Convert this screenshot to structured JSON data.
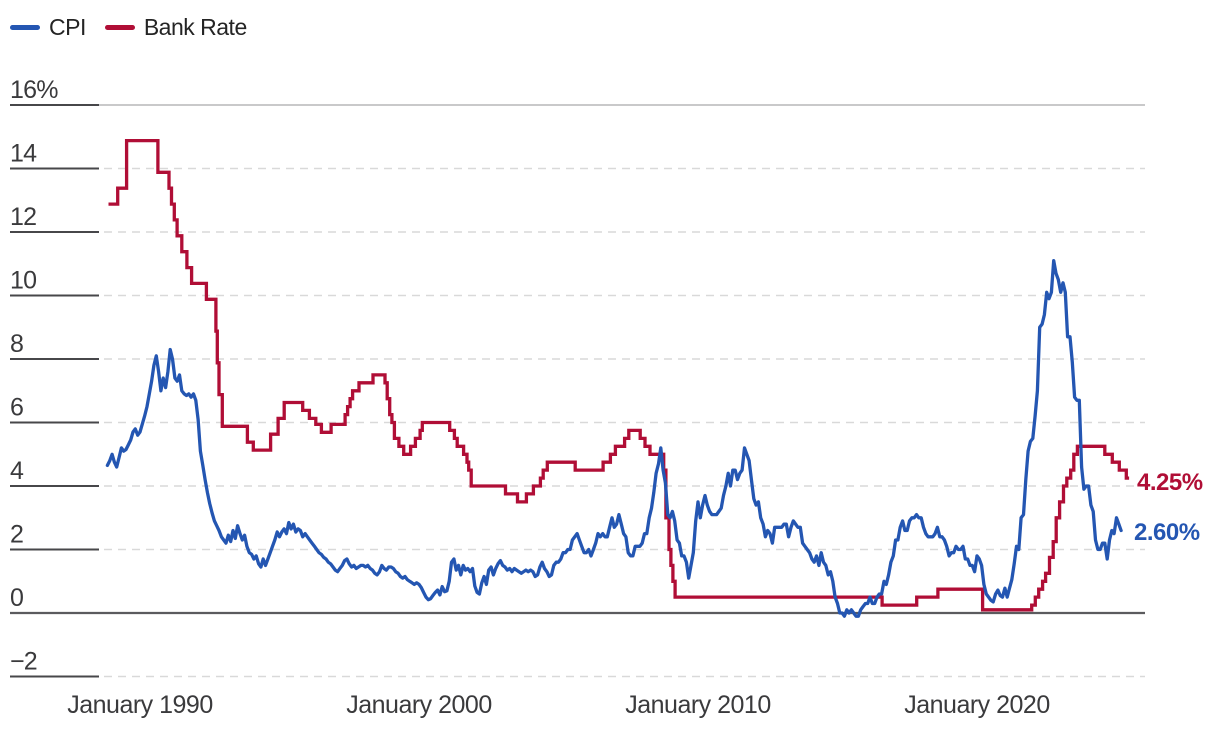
{
  "legend": {
    "items": [
      {
        "label": "CPI",
        "color": "#2456B2"
      },
      {
        "label": "Bank Rate",
        "color": "#B00E36"
      }
    ]
  },
  "chart_data": {
    "type": "line",
    "title": "",
    "grid": "horizontal, dashed light gray; solid dark zero axis; dark left tick stubs",
    "legend_position": "top-left",
    "x_axis": {
      "tick_labels": [
        "January 1990",
        "January 2000",
        "January 2010",
        "January 2020"
      ],
      "tick_years": [
        1990,
        2000,
        2010,
        2020
      ],
      "range_years": [
        1988.6,
        2026.4
      ]
    },
    "y_axis": {
      "unit": "%",
      "tick_labels": [
        "16%",
        "14",
        "12",
        "10",
        "8",
        "6",
        "4",
        "2",
        "0",
        "−2"
      ],
      "tick_values": [
        16,
        14,
        12,
        10,
        8,
        6,
        4,
        2,
        0,
        -2
      ],
      "range": [
        -2.8,
        16
      ]
    },
    "series": [
      {
        "name": "CPI",
        "type": "line",
        "color": "#2456B2",
        "end_label": "2.60%",
        "end_value": 2.6,
        "start_year": 1988.8333,
        "interval_years": 0.08333,
        "values": [
          4.65,
          4.8,
          5.0,
          4.75,
          4.6,
          4.9,
          5.2,
          5.1,
          5.15,
          5.3,
          5.45,
          5.7,
          5.8,
          5.6,
          5.7,
          5.95,
          6.2,
          6.5,
          6.9,
          7.3,
          7.8,
          8.1,
          7.6,
          7.0,
          7.4,
          7.1,
          7.6,
          8.3,
          8.0,
          7.4,
          7.3,
          7.5,
          7.0,
          6.9,
          6.85,
          6.9,
          6.8,
          6.9,
          6.7,
          6.1,
          5.1,
          4.65,
          4.2,
          3.8,
          3.45,
          3.15,
          2.9,
          2.75,
          2.6,
          2.4,
          2.3,
          2.2,
          2.45,
          2.25,
          2.6,
          2.35,
          2.75,
          2.5,
          2.3,
          2.45,
          2.1,
          1.9,
          1.85,
          1.7,
          1.8,
          1.55,
          1.45,
          1.7,
          1.5,
          1.7,
          1.9,
          2.1,
          2.3,
          2.55,
          2.4,
          2.55,
          2.65,
          2.5,
          2.85,
          2.65,
          2.8,
          2.55,
          2.65,
          2.6,
          2.4,
          2.5,
          2.4,
          2.3,
          2.2,
          2.1,
          2.0,
          1.9,
          1.85,
          1.75,
          1.7,
          1.6,
          1.55,
          1.45,
          1.35,
          1.3,
          1.4,
          1.5,
          1.65,
          1.7,
          1.55,
          1.45,
          1.5,
          1.4,
          1.45,
          1.5,
          1.5,
          1.45,
          1.5,
          1.4,
          1.35,
          1.25,
          1.2,
          1.3,
          1.5,
          1.4,
          1.35,
          1.45,
          1.45,
          1.4,
          1.3,
          1.25,
          1.15,
          1.1,
          1.15,
          1.05,
          1.0,
          0.95,
          0.9,
          0.95,
          0.9,
          0.8,
          0.65,
          0.5,
          0.42,
          0.45,
          0.55,
          0.65,
          0.72,
          0.57,
          0.83,
          0.67,
          0.7,
          1.0,
          1.6,
          1.7,
          1.35,
          1.5,
          1.2,
          1.5,
          1.35,
          1.4,
          1.3,
          1.4,
          0.85,
          0.65,
          0.6,
          0.95,
          1.15,
          0.9,
          1.35,
          1.45,
          1.2,
          1.4,
          1.55,
          1.65,
          1.5,
          1.45,
          1.35,
          1.4,
          1.3,
          1.4,
          1.35,
          1.3,
          1.25,
          1.3,
          1.35,
          1.3,
          1.35,
          1.3,
          1.15,
          1.2,
          1.45,
          1.6,
          1.4,
          1.3,
          1.15,
          1.2,
          1.5,
          1.6,
          1.6,
          1.7,
          1.9,
          1.9,
          2.0,
          2.0,
          2.3,
          2.4,
          2.5,
          2.3,
          2.1,
          1.9,
          1.9,
          2.0,
          1.8,
          2.0,
          2.2,
          2.5,
          2.4,
          2.5,
          2.4,
          2.4,
          2.7,
          3.0,
          2.7,
          2.8,
          3.1,
          2.8,
          2.5,
          2.4,
          1.9,
          1.8,
          1.8,
          2.1,
          2.1,
          2.1,
          2.2,
          2.5,
          2.5,
          3.0,
          3.3,
          3.8,
          4.4,
          4.7,
          5.2,
          4.5,
          4.1,
          3.1,
          3.0,
          3.2,
          2.9,
          2.3,
          2.2,
          1.8,
          1.8,
          1.6,
          1.1,
          1.5,
          1.9,
          2.9,
          3.5,
          3.0,
          3.4,
          3.7,
          3.4,
          3.2,
          3.1,
          3.1,
          3.1,
          3.2,
          3.3,
          3.7,
          4.0,
          4.4,
          4.0,
          4.5,
          4.5,
          4.2,
          4.4,
          4.5,
          5.2,
          5.0,
          4.8,
          4.2,
          3.6,
          3.4,
          3.5,
          3.0,
          2.8,
          2.4,
          2.6,
          2.5,
          2.2,
          2.7,
          2.7,
          2.7,
          2.7,
          2.8,
          2.8,
          2.4,
          2.7,
          2.9,
          2.8,
          2.7,
          2.7,
          2.2,
          2.1,
          2.0,
          1.9,
          1.7,
          1.6,
          1.8,
          1.5,
          1.9,
          1.6,
          1.5,
          1.2,
          1.3,
          1.0,
          0.5,
          0.3,
          0.0,
          0.0,
          -0.1,
          0.1,
          0.0,
          0.1,
          0.0,
          -0.1,
          -0.1,
          0.1,
          0.2,
          0.3,
          0.3,
          0.5,
          0.3,
          0.3,
          0.5,
          0.6,
          0.6,
          1.0,
          0.9,
          1.2,
          1.6,
          1.8,
          2.3,
          2.3,
          2.7,
          2.9,
          2.6,
          2.6,
          2.9,
          3.0,
          3.0,
          3.1,
          3.0,
          3.0,
          2.7,
          2.5,
          2.4,
          2.4,
          2.4,
          2.5,
          2.7,
          2.4,
          2.4,
          2.3,
          2.1,
          1.8,
          1.9,
          1.9,
          2.1,
          2.0,
          2.0,
          2.1,
          1.7,
          1.7,
          1.5,
          1.5,
          1.3,
          1.8,
          1.7,
          1.5,
          0.9,
          0.6,
          0.5,
          0.4,
          0.35,
          0.6,
          0.72,
          0.55,
          0.5,
          0.78,
          0.5,
          0.78,
          1.05,
          1.55,
          2.1,
          2.0,
          3.0,
          3.1,
          4.2,
          5.1,
          5.4,
          5.5,
          6.2,
          7.0,
          9.0,
          9.1,
          9.4,
          10.1,
          9.9,
          10.1,
          11.1,
          10.7,
          10.5,
          10.1,
          10.4,
          10.1,
          8.7,
          8.7,
          7.9,
          6.8,
          6.7,
          6.7,
          4.6,
          3.9,
          4.0,
          4.0,
          3.4,
          3.2,
          2.3,
          2.0,
          2.0,
          2.2,
          2.2,
          1.7,
          2.3,
          2.6,
          2.5,
          3.0,
          2.8,
          2.6
        ]
      },
      {
        "name": "Bank Rate",
        "type": "step",
        "color": "#B00E36",
        "end_label": "4.25%",
        "end_value": 4.25,
        "end_year": 2025.45,
        "points": [
          [
            1988.87,
            12.88
          ],
          [
            1989.2,
            13.38
          ],
          [
            1989.52,
            14.88
          ],
          [
            1990.64,
            13.88
          ],
          [
            1991.04,
            13.38
          ],
          [
            1991.13,
            12.88
          ],
          [
            1991.23,
            12.38
          ],
          [
            1991.33,
            11.88
          ],
          [
            1991.5,
            11.38
          ],
          [
            1991.68,
            10.88
          ],
          [
            1991.85,
            10.38
          ],
          [
            1992.38,
            9.88
          ],
          [
            1992.72,
            8.88
          ],
          [
            1992.77,
            7.88
          ],
          [
            1992.83,
            6.88
          ],
          [
            1992.95,
            5.88
          ],
          [
            1993.85,
            5.38
          ],
          [
            1994.06,
            5.13
          ],
          [
            1994.68,
            5.63
          ],
          [
            1994.95,
            6.13
          ],
          [
            1995.17,
            6.63
          ],
          [
            1995.83,
            6.38
          ],
          [
            1996.07,
            6.13
          ],
          [
            1996.3,
            5.94
          ],
          [
            1996.5,
            5.69
          ],
          [
            1996.85,
            5.94
          ],
          [
            1997.35,
            6.25
          ],
          [
            1997.44,
            6.5
          ],
          [
            1997.53,
            6.75
          ],
          [
            1997.62,
            7.0
          ],
          [
            1997.85,
            7.25
          ],
          [
            1998.35,
            7.5
          ],
          [
            1998.78,
            7.25
          ],
          [
            1998.86,
            6.75
          ],
          [
            1998.95,
            6.25
          ],
          [
            1999.03,
            6.0
          ],
          [
            1999.12,
            5.5
          ],
          [
            1999.28,
            5.25
          ],
          [
            1999.45,
            5.0
          ],
          [
            1999.7,
            5.25
          ],
          [
            1999.87,
            5.5
          ],
          [
            2000.04,
            5.75
          ],
          [
            2000.12,
            6.0
          ],
          [
            2001.1,
            5.75
          ],
          [
            2001.27,
            5.5
          ],
          [
            2001.37,
            5.25
          ],
          [
            2001.6,
            5.0
          ],
          [
            2001.72,
            4.75
          ],
          [
            2001.78,
            4.5
          ],
          [
            2001.87,
            4.0
          ],
          [
            2003.1,
            3.75
          ],
          [
            2003.53,
            3.5
          ],
          [
            2003.85,
            3.75
          ],
          [
            2004.1,
            4.0
          ],
          [
            2004.35,
            4.25
          ],
          [
            2004.45,
            4.5
          ],
          [
            2004.6,
            4.75
          ],
          [
            2005.6,
            4.5
          ],
          [
            2006.6,
            4.75
          ],
          [
            2006.86,
            5.0
          ],
          [
            2007.04,
            5.25
          ],
          [
            2007.37,
            5.5
          ],
          [
            2007.52,
            5.75
          ],
          [
            2007.93,
            5.5
          ],
          [
            2008.1,
            5.25
          ],
          [
            2008.28,
            5.0
          ],
          [
            2008.77,
            4.5
          ],
          [
            2008.85,
            3.0
          ],
          [
            2008.96,
            2.0
          ],
          [
            2009.03,
            1.5
          ],
          [
            2009.1,
            1.0
          ],
          [
            2009.18,
            0.5
          ],
          [
            2016.6,
            0.25
          ],
          [
            2017.84,
            0.5
          ],
          [
            2018.6,
            0.75
          ],
          [
            2020.2,
            0.1
          ],
          [
            2021.96,
            0.25
          ],
          [
            2022.09,
            0.5
          ],
          [
            2022.21,
            0.75
          ],
          [
            2022.35,
            1.0
          ],
          [
            2022.46,
            1.25
          ],
          [
            2022.6,
            1.75
          ],
          [
            2022.73,
            2.25
          ],
          [
            2022.84,
            3.0
          ],
          [
            2022.96,
            3.5
          ],
          [
            2023.1,
            4.0
          ],
          [
            2023.22,
            4.25
          ],
          [
            2023.36,
            4.5
          ],
          [
            2023.47,
            5.0
          ],
          [
            2023.6,
            5.25
          ],
          [
            2024.58,
            5.0
          ],
          [
            2024.85,
            4.75
          ],
          [
            2025.1,
            4.5
          ],
          [
            2025.35,
            4.25
          ]
        ]
      }
    ]
  }
}
